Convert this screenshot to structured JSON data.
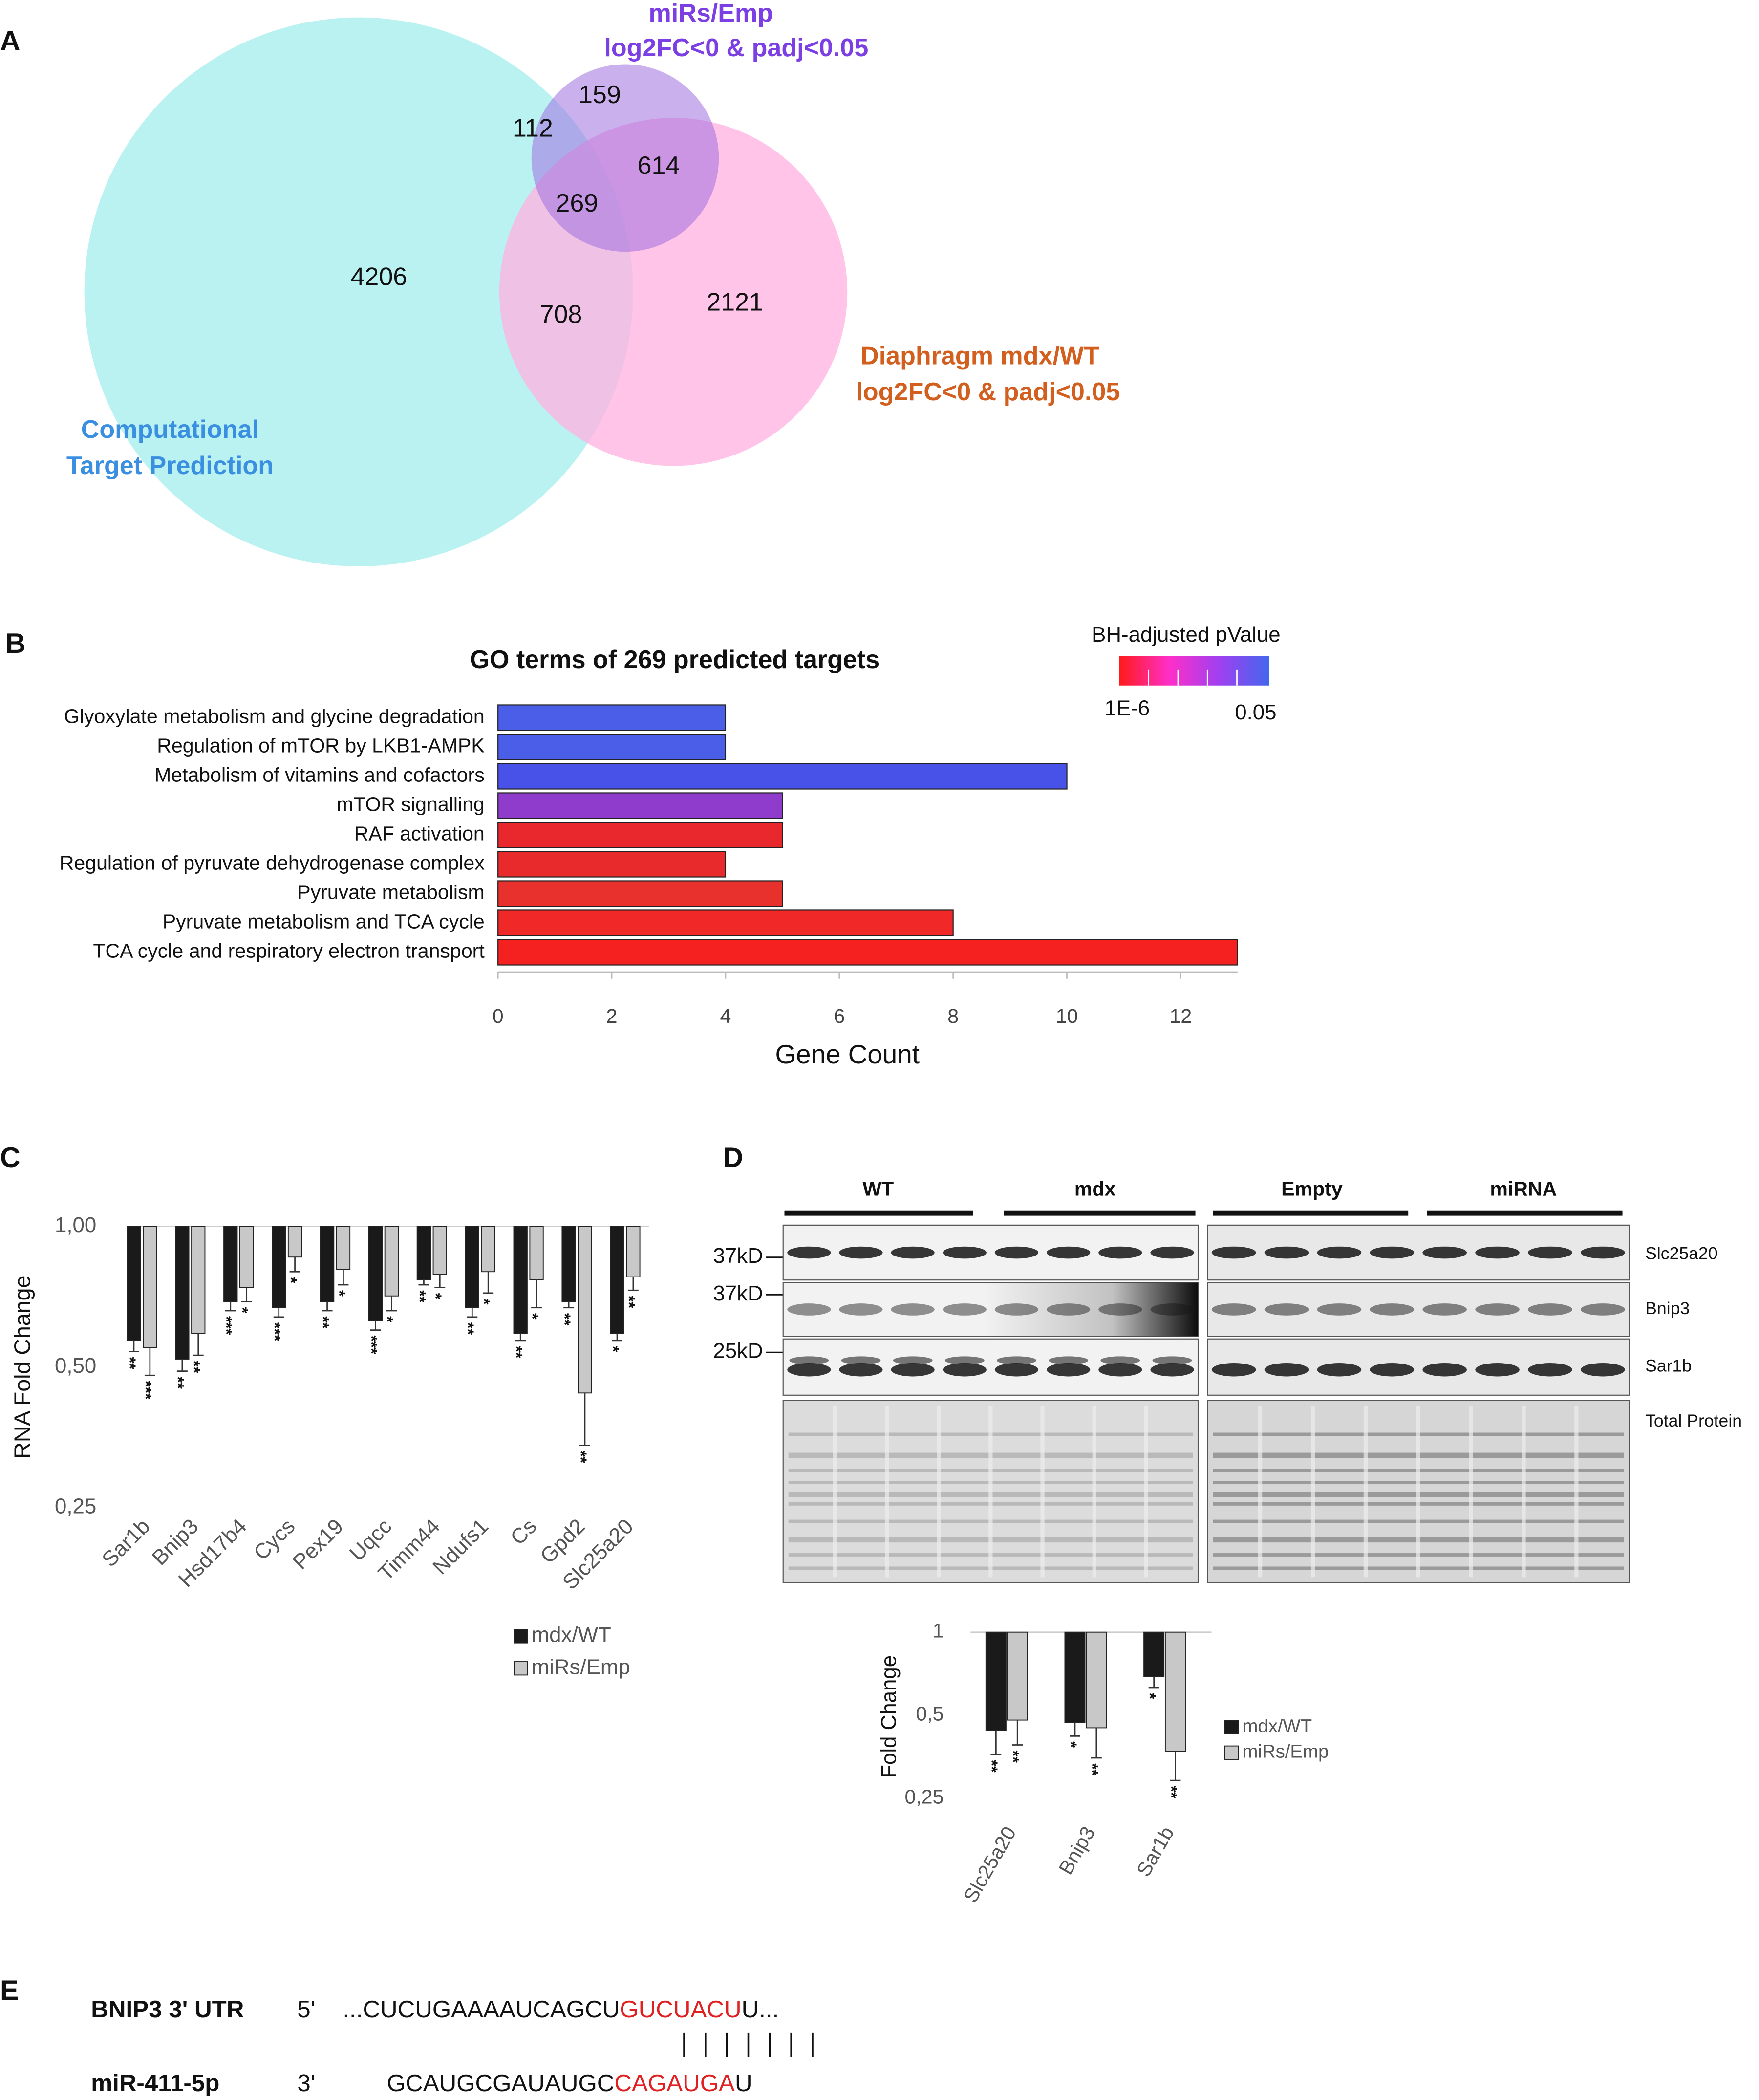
{
  "panel_labels": [
    "A",
    "B",
    "C",
    "D",
    "E"
  ],
  "venn": {
    "set_labels": {
      "mirs": [
        "miRs/Emp",
        "log2FC<0 & padj<0.05"
      ],
      "diaphragm": [
        "Diaphragm mdx/WT",
        "log2FC<0 & padj<0.05"
      ],
      "computational": [
        "Computational",
        "Target Prediction"
      ]
    },
    "counts": {
      "mirs_only": 159,
      "computational_mirs": 112,
      "mirs_diaphragm": 614,
      "all": 269,
      "computational_only": 4206,
      "computational_diaphragm": 708,
      "diaphragm_only": 2121
    }
  },
  "chart_data": [
    {
      "type": "bar",
      "orientation": "horizontal",
      "title": "GO terms of 269 predicted targets",
      "x_label": "Gene Count",
      "categories": [
        "Glyoxylate metabolism and glycine degradation",
        "Regulation of mTOR by LKB1-AMPK",
        "Metabolism of vitamins and cofactors",
        "mTOR signalling",
        "RAF activation",
        "Regulation of pyruvate dehydrogenase complex",
        "Pyruvate metabolism",
        "Pyruvate metabolism and TCA cycle",
        "TCA cycle and respiratory electron transport"
      ],
      "values": [
        4,
        4,
        10,
        5,
        5,
        4,
        5,
        8,
        13
      ],
      "colors": [
        "#4a5ee8",
        "#4a5ee8",
        "#4952e8",
        "#8f3ccc",
        "#e8282c",
        "#e82a2c",
        "#e8302c",
        "#f02828",
        "#f52020"
      ],
      "xlim": [
        0,
        13
      ],
      "xticks": [
        0,
        2,
        4,
        6,
        8,
        10,
        12
      ],
      "colorbar": {
        "title": "BH-adjusted pValue",
        "labels": [
          "1E-6",
          "0.05"
        ],
        "colors": [
          "#ff1a1a",
          "#ff2fc8",
          "#a040f0",
          "#4466ee"
        ]
      }
    },
    {
      "type": "bar",
      "y_label": "RNA Fold Change",
      "log_scale": true,
      "categories": [
        "Sar1b",
        "Bnip3",
        "Hsd17b4",
        "Cycs",
        "Pex19",
        "Uqcc",
        "Timm44",
        "Ndufs1",
        "Cs",
        "Gpd2",
        "Slc25a20"
      ],
      "series": [
        {
          "name": "mdx/WT",
          "color": "#1a1a1a",
          "values": [
            0.57,
            0.52,
            0.69,
            0.67,
            0.69,
            0.63,
            0.77,
            0.67,
            0.59,
            0.69,
            0.59
          ],
          "errors": [
            0.03,
            0.03,
            0.03,
            0.03,
            0.03,
            0.03,
            0.02,
            0.03,
            0.02,
            0.02,
            0.02
          ],
          "significance": [
            "**",
            "**",
            "***",
            "***",
            "**",
            "***",
            "**",
            "**",
            "**",
            "**",
            "*"
          ]
        },
        {
          "name": "miRs/Emp",
          "color": "#c8c8c8",
          "values": [
            0.55,
            0.59,
            0.74,
            0.86,
            0.81,
            0.71,
            0.79,
            0.8,
            0.77,
            0.44,
            0.78
          ],
          "errors": [
            0.07,
            0.06,
            0.05,
            0.06,
            0.06,
            0.05,
            0.05,
            0.08,
            0.1,
            0.1,
            0.05
          ],
          "significance": [
            "***",
            "**",
            "*",
            "*",
            "*",
            "*",
            "*",
            "*",
            "*",
            "**",
            "**"
          ]
        }
      ],
      "ylim": [
        0.25,
        1
      ],
      "yticks": [
        {
          "value": 1,
          "label": "1,00"
        },
        {
          "value": 0.5,
          "label": "0,50"
        },
        {
          "value": 0.25,
          "label": "0,25"
        }
      ]
    },
    {
      "type": "bar",
      "y_label": "Fold Change",
      "log_scale": true,
      "categories": [
        "Slc25a20",
        "Bnip3",
        "Sar1b"
      ],
      "series": [
        {
          "name": "mdx/WT",
          "color": "#1a1a1a",
          "values": [
            0.44,
            0.47,
            0.69
          ],
          "errors": [
            0.08,
            0.05,
            0.06
          ],
          "significance": [
            "**",
            "*",
            "*"
          ]
        },
        {
          "name": "miRs/Emp",
          "color": "#c8c8c8",
          "values": [
            0.48,
            0.45,
            0.37
          ],
          "errors": [
            0.09,
            0.1,
            0.08
          ],
          "significance": [
            "**",
            "**",
            "**"
          ]
        }
      ],
      "ylim": [
        0.25,
        1
      ],
      "yticks": [
        1,
        {
          "value": 0.5,
          "label": "0,5"
        },
        {
          "value": 0.25,
          "label": "0,25"
        }
      ]
    }
  ],
  "blot": {
    "groups": [
      "WT",
      "mdx",
      "Empty",
      "miRNA"
    ],
    "markers": [
      "37kD",
      "37kD",
      "25kD"
    ],
    "rows": [
      "Slc25a20",
      "Bnip3",
      "Sar1b",
      "Total Protein"
    ]
  },
  "sequence": {
    "utr": {
      "name": "BNIP3 3' UTR",
      "end": "5'",
      "parts": [
        "...CUCUGAAAAUCAGCU",
        "GUCUACU",
        "U..."
      ]
    },
    "mirna": {
      "name": "miR-411-5p",
      "end": "3'",
      "parts": [
        "GCAUGCGAUAUGC",
        "CAGAUGA",
        "U"
      ]
    }
  }
}
